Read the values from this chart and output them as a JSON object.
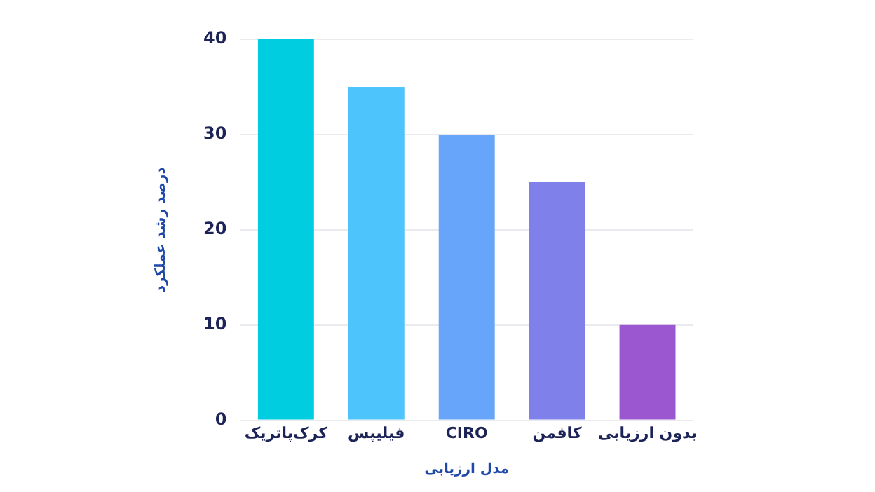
{
  "chart_data": {
    "type": "bar",
    "xlabel": "مدل ارزیابی",
    "ylabel": "درصد رشد عملکرد",
    "categories": [
      "کرک‌پاتریک",
      "فیلیپس",
      "CIRO",
      "کافمن",
      "بدون ارزیابی"
    ],
    "values": [
      40,
      35,
      30,
      25,
      10
    ],
    "colors": [
      "#00cde0",
      "#4dc4fb",
      "#66a5f9",
      "#7f80e9",
      "#9a57cf"
    ],
    "ylim": [
      0,
      40
    ],
    "yticks": [
      0,
      10,
      20,
      30,
      40
    ],
    "grid": "y",
    "legend": false
  }
}
